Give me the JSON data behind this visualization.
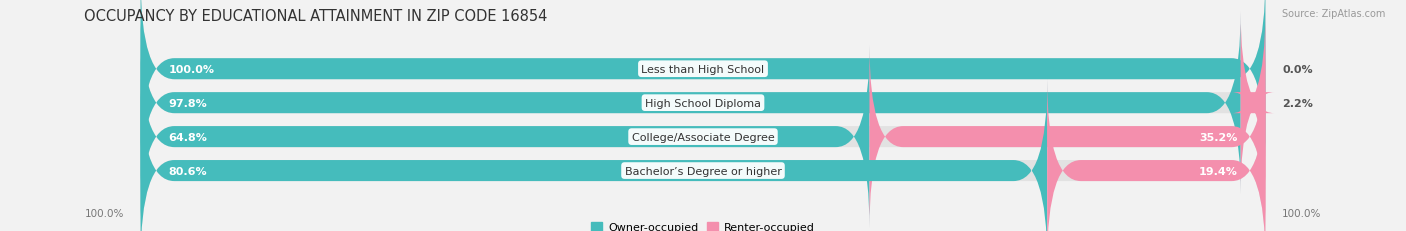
{
  "title": "OCCUPANCY BY EDUCATIONAL ATTAINMENT IN ZIP CODE 16854",
  "source": "Source: ZipAtlas.com",
  "categories": [
    "Less than High School",
    "High School Diploma",
    "College/Associate Degree",
    "Bachelor’s Degree or higher"
  ],
  "owner_pct": [
    100.0,
    97.8,
    64.8,
    80.6
  ],
  "renter_pct": [
    0.0,
    2.2,
    35.2,
    19.4
  ],
  "owner_color": "#45BCBC",
  "renter_color": "#F48FAD",
  "bg_color": "#f2f2f2",
  "bar_bg_color": "#e2e2e2",
  "bar_height": 0.62,
  "title_fontsize": 10.5,
  "label_fontsize": 8,
  "pct_fontsize": 8,
  "axis_label_fontsize": 7.5,
  "legend_fontsize": 8,
  "left_axis_label": "100.0%",
  "right_axis_label": "100.0%"
}
